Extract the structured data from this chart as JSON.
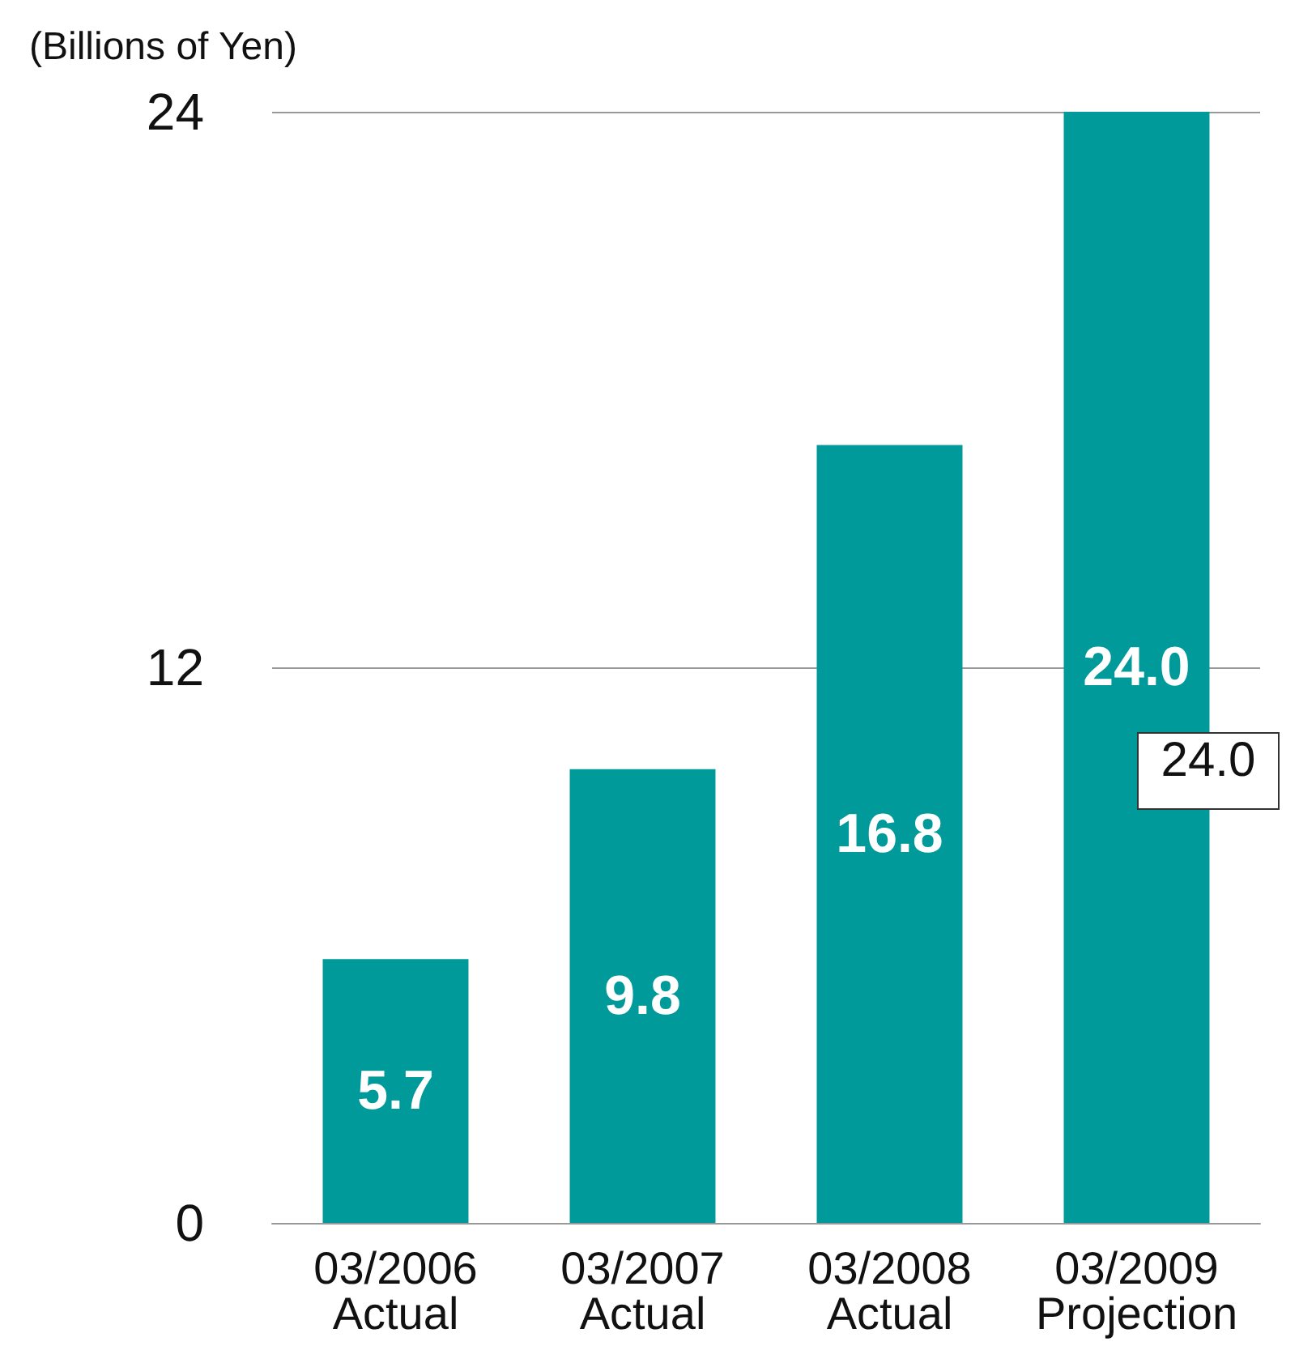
{
  "chart_data": {
    "type": "bar",
    "ylabel": "(Billions of Yen)",
    "categories": [
      "03/2006\nActual",
      "03/2007\nActual",
      "03/2008\nActual",
      "03/2009\nProjection"
    ],
    "values": [
      5.7,
      9.8,
      16.8,
      24.0
    ],
    "color": "#009a9a",
    "value_labels": [
      "5.7",
      "9.8",
      "16.8",
      "24.0"
    ],
    "ylim": [
      0,
      24
    ],
    "yticks": [
      0,
      12,
      24
    ],
    "grid": "y",
    "annotations": [
      "24.0"
    ]
  }
}
